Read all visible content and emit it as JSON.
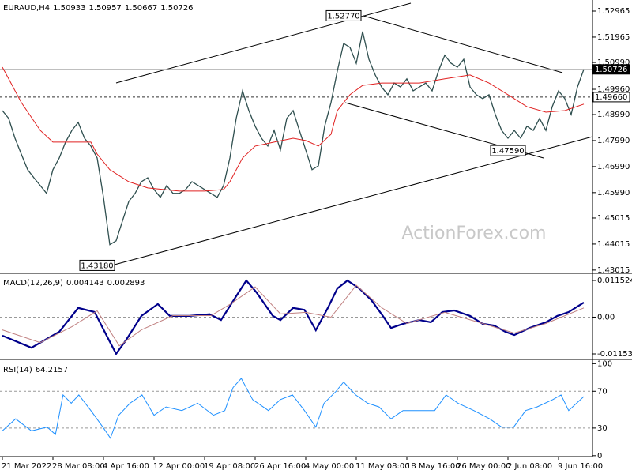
{
  "chart_data": [
    {
      "type": "line",
      "title": "EURAUD,H4",
      "header_values": [
        1.50933,
        1.50957,
        1.50667,
        1.50726
      ],
      "watermark": "ActionForex.com",
      "categories": [
        "21 Mar 2022",
        null,
        null,
        null,
        null,
        null,
        null,
        null,
        "28 Mar 08:00",
        null,
        null,
        null,
        null,
        null,
        null,
        null,
        "4 Apr 16:00",
        null,
        null,
        null,
        null,
        null,
        null,
        null,
        "12 Apr 00:00",
        null,
        null,
        null,
        null,
        null,
        null,
        null,
        "19 Apr 08:00",
        null,
        null,
        null,
        null,
        null,
        null,
        null,
        "26 Apr 16:00",
        null,
        null,
        null,
        null,
        null,
        null,
        null,
        "4 May 00:00",
        null,
        null,
        null,
        null,
        null,
        null,
        null,
        "11 May 08:00",
        null,
        null,
        null,
        null,
        null,
        null,
        null,
        "18 May 16:00",
        null,
        null,
        null,
        null,
        null,
        null,
        null,
        "26 May 00:00",
        null,
        null,
        null,
        null,
        null,
        null,
        null,
        "2 Jun 08:00",
        null,
        null,
        null,
        null,
        null,
        null,
        null,
        "9 Jun 16:00",
        null,
        null,
        null,
        null
      ],
      "values": [
        1.4914,
        1.4884,
        1.4808,
        1.4747,
        1.4687,
        1.4656,
        1.4626,
        1.4596,
        1.4687,
        1.4732,
        1.4793,
        1.4838,
        1.4869,
        1.4808,
        1.4778,
        1.4732,
        1.4581,
        1.4399,
        1.4414,
        1.449,
        1.4565,
        1.4596,
        1.4641,
        1.4656,
        1.4611,
        1.4581,
        1.4626,
        1.4596,
        1.4596,
        1.4611,
        1.4641,
        1.4626,
        1.4611,
        1.4596,
        1.4581,
        1.4626,
        1.4732,
        1.4884,
        1.499,
        1.4914,
        1.4854,
        1.4808,
        1.4778,
        1.4838,
        1.4763,
        1.4884,
        1.4914,
        1.4838,
        1.4763,
        1.4687,
        1.4702,
        1.4854,
        1.4945,
        1.5066,
        1.5172,
        1.5157,
        1.5096,
        1.5218,
        1.5111,
        1.5051,
        1.5005,
        1.4975,
        1.502,
        1.5005,
        1.5036,
        1.499,
        1.5005,
        1.502,
        1.499,
        1.5066,
        1.5127,
        1.5096,
        1.5081,
        1.5111,
        1.5005,
        1.4975,
        1.496,
        1.4975,
        1.4899,
        1.4838,
        1.4808,
        1.4838,
        1.4808,
        1.4854,
        1.4838,
        1.4884,
        1.4838,
        1.4929,
        1.499,
        1.496,
        1.4899,
        1.5005,
        1.50726
      ],
      "color": "#2f4f4f",
      "series": [
        {
          "color": "#e02020",
          "x": [
            0,
            1,
            3,
            6,
            8,
            12,
            14,
            15,
            17,
            20,
            23,
            28,
            32,
            35,
            36,
            38,
            40,
            43,
            46,
            48,
            50,
            52,
            53,
            55,
            57,
            60,
            66,
            70,
            74,
            77,
            80,
            83,
            86,
            89,
            92
          ],
          "values": [
            1.5081,
            1.5036,
            1.4945,
            1.4838,
            1.4793,
            1.4793,
            1.4793,
            1.4747,
            1.4687,
            1.4641,
            1.4617,
            1.4605,
            1.4605,
            1.4611,
            1.4641,
            1.4732,
            1.4778,
            1.4793,
            1.4808,
            1.4799,
            1.4778,
            1.4823,
            1.4914,
            1.4975,
            1.5011,
            1.502,
            1.502,
            1.5036,
            1.5051,
            1.502,
            1.4975,
            1.4929,
            1.4908,
            1.4914,
            1.4939
          ]
        }
      ],
      "ylim": [
        1.4292,
        1.5339
      ],
      "yticks": [
        1.52965,
        1.51965,
        {
          "value": 1.5099,
          "label": "1.50990"
        },
        {
          "value": 1.4996,
          "label": "1.49960"
        },
        {
          "value": 1.4899,
          "label": "1.48990"
        },
        {
          "value": 1.4799,
          "label": "1.47990"
        },
        {
          "value": 1.4699,
          "label": "1.46990"
        },
        {
          "value": 1.4599,
          "label": "1.45990"
        },
        1.45015,
        1.44015,
        1.43015
      ],
      "price_levels": [
        {
          "value": 1.50726,
          "label": "1.50726",
          "style": "solid"
        },
        {
          "value": 1.4966,
          "label": "1.49660",
          "style": "dashed"
        }
      ],
      "annotations": [
        {
          "x": 54,
          "value": 1.5277,
          "label": "1.52770"
        },
        {
          "x": 80,
          "value": 1.4759,
          "label": "1.47590"
        },
        {
          "x": 15,
          "value": 1.4318,
          "label": "1.43180"
        }
      ]
    },
    {
      "type": "line",
      "title": "MACD(12,26,9)",
      "header_values": [
        0.004143,
        0.002893
      ],
      "series": [
        {
          "color": "#00008b",
          "x": [
            0,
            4.6,
            9,
            12,
            14.6,
            16.5,
            18,
            19.6,
            22,
            24.6,
            26.5,
            29.6,
            32.8,
            34.6,
            37,
            38.6,
            40.2,
            42.8,
            44,
            46,
            47.8,
            49.6,
            51.5,
            53,
            54.6,
            56.5,
            58.4,
            60.2,
            61.5,
            63.4,
            66,
            67.8,
            69.6,
            71.5,
            74,
            76,
            77.8,
            79.6,
            81,
            83.4,
            86,
            87.8,
            89.6,
            92
          ],
          "values": [
            -0.0058,
            -0.0096,
            -0.0046,
            0.0029,
            0.0016,
            -0.0058,
            -0.0115,
            -0.0071,
            0.0004,
            0.0041,
            0.0004,
            0.0004,
            0.0009,
            -0.0009,
            0.0066,
            0.0115,
            0.0078,
            0.0004,
            -0.0009,
            0.0029,
            0.0023,
            -0.0041,
            0.0029,
            0.009,
            0.0115,
            0.009,
            0.0053,
            0.0004,
            -0.0034,
            -0.0021,
            -0.0009,
            -0.0016,
            0.0016,
            0.0021,
            0.0004,
            -0.0021,
            -0.0026,
            -0.0046,
            -0.0056,
            -0.0034,
            -0.0016,
            0.0004,
            0.0016,
            0.0046
          ]
        },
        {
          "color": "#c08080",
          "x": [
            0,
            6,
            11,
            15,
            18.5,
            22,
            27,
            33,
            36,
            40,
            44,
            48,
            52,
            56,
            60,
            64,
            70,
            76,
            81,
            86,
            92
          ],
          "values": [
            -0.004,
            -0.008,
            -0.003,
            0.002,
            -0.009,
            -0.004,
            0.0005,
            0.0005,
            0.004,
            0.0095,
            0.001,
            0.0015,
            0.0,
            0.01,
            0.003,
            -0.002,
            0.0015,
            -0.002,
            -0.005,
            -0.002,
            0.0029
          ]
        }
      ],
      "ylim": [
        -0.012529,
        0.01326
      ],
      "yticks": [
        0.011524,
        {
          "value": 0,
          "label": "0.00"
        },
        -0.011537
      ],
      "hlines": [
        0
      ]
    },
    {
      "type": "line",
      "title": "RSI(14)",
      "header_values": [
        64.2157
      ],
      "series": [
        {
          "color": "#1e90ff",
          "x": [
            0,
            2.1,
            4.6,
            7.1,
            8.4,
            9.6,
            10.9,
            12.1,
            14,
            15.9,
            17.1,
            18.4,
            20.2,
            22.1,
            24,
            25.9,
            28.4,
            30.9,
            33.4,
            35.2,
            36.5,
            37.8,
            39.6,
            42.1,
            44,
            45.9,
            47.8,
            49.6,
            50.9,
            52.8,
            54,
            55.9,
            57.8,
            59.6,
            61.5,
            63.4,
            65.9,
            68.4,
            70.2,
            72.1,
            74.6,
            77.1,
            79,
            80.9,
            82.8,
            84.6,
            87.1,
            88.4,
            89.6,
            92
          ],
          "values": [
            27,
            40,
            27,
            31,
            23,
            66,
            57,
            66,
            49,
            31,
            19,
            44,
            57,
            66,
            44,
            53,
            49,
            57,
            44,
            49,
            74,
            84,
            61,
            49,
            61,
            66,
            49,
            31,
            57,
            70,
            80,
            66,
            57,
            53,
            40,
            49,
            49,
            49,
            66,
            57,
            49,
            40,
            31,
            31,
            49,
            53,
            61,
            66,
            49,
            64.2157
          ]
        }
      ],
      "ylim": [
        -1,
        102
      ],
      "yticks": [
        100,
        70,
        30,
        0
      ],
      "hlines": [
        70,
        30
      ]
    }
  ]
}
